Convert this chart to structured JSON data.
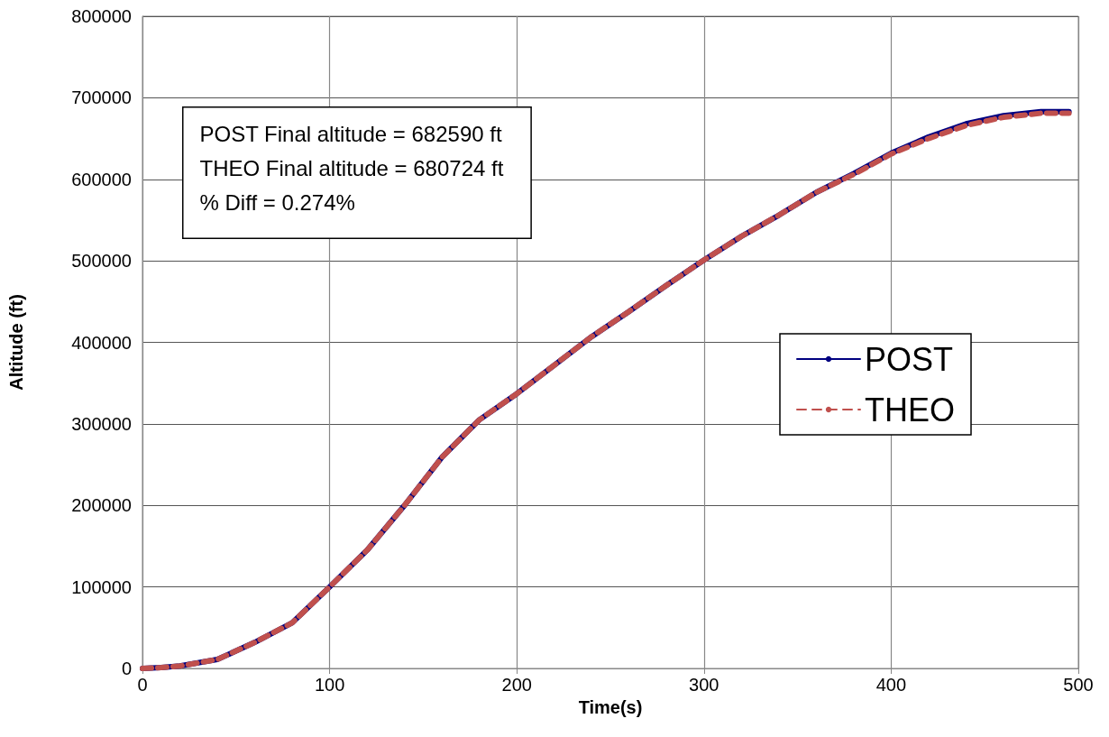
{
  "chart_data": {
    "type": "line",
    "xlabel": "Time(s)",
    "ylabel": "Altitude (ft)",
    "x": [
      0,
      10,
      20,
      40,
      60,
      80,
      100,
      120,
      140,
      160,
      180,
      200,
      220,
      240,
      260,
      280,
      300,
      320,
      340,
      360,
      380,
      400,
      420,
      440,
      460,
      480,
      495
    ],
    "series": [
      {
        "name": "POST",
        "color": "#000080",
        "line_style": "solid",
        "values": [
          0,
          1000,
          3000,
          11000,
          32000,
          56000,
          100000,
          145000,
          200000,
          259000,
          305000,
          337000,
          372000,
          407000,
          438000,
          470000,
          501000,
          530000,
          556000,
          584000,
          607000,
          632000,
          652000,
          668000,
          678000,
          683000,
          683000
        ]
      },
      {
        "name": "THEO",
        "color": "#c0504d",
        "line_style": "dashed",
        "values": [
          0,
          1000,
          3000,
          11000,
          32000,
          56000,
          100000,
          145000,
          200000,
          259000,
          305000,
          337000,
          372000,
          407000,
          438000,
          470000,
          501000,
          530000,
          556000,
          584000,
          606000,
          631000,
          650000,
          666000,
          676000,
          681000,
          681000
        ]
      }
    ],
    "xlim": [
      0,
      500
    ],
    "xticks": [
      0,
      100,
      200,
      300,
      400,
      500
    ],
    "ylim": [
      0,
      800000
    ],
    "yticks": [
      0,
      100000,
      200000,
      300000,
      400000,
      500000,
      600000,
      700000,
      800000
    ],
    "grid": true,
    "legend": "right",
    "marker": "none",
    "annotations": [
      "POST Final altitude = 682590 ft",
      "THEO Final altitude = 680724 ft",
      "% Diff = 0.274%"
    ]
  }
}
